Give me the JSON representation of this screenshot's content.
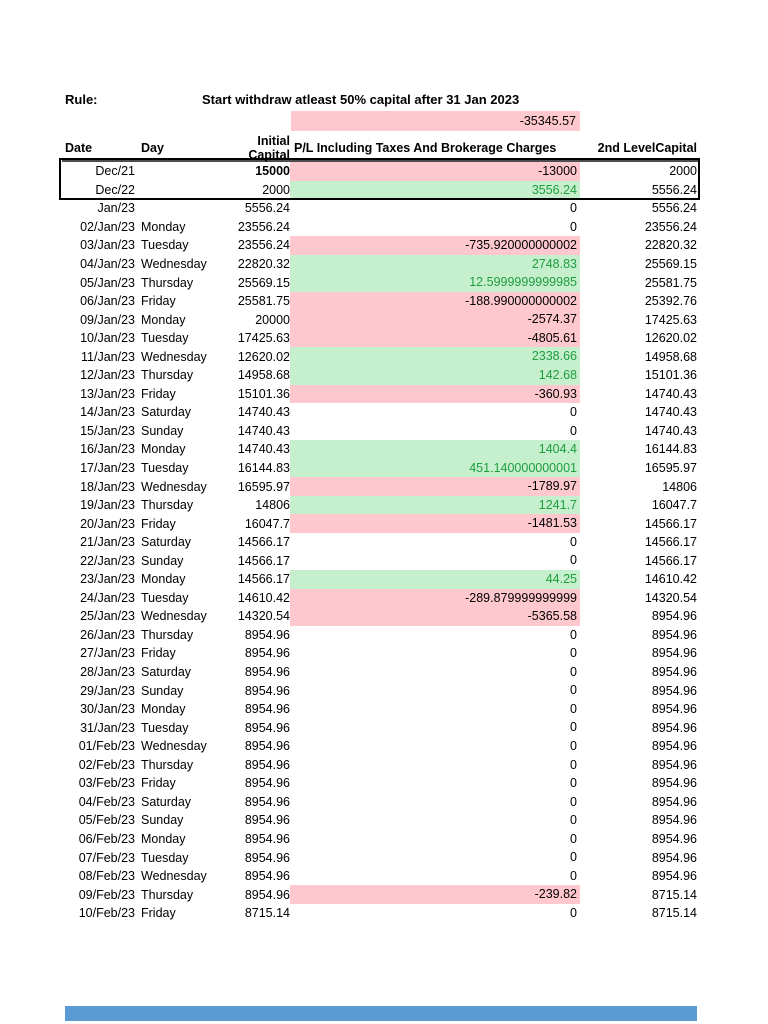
{
  "page": {
    "rule_label": "Rule:",
    "rule_text": "Start withdraw atleast 50% capital after 31 Jan 2023",
    "summary_value": "-35345.57"
  },
  "colors": {
    "negative_fill": "#ffc7ce",
    "positive_fill": "#c6efce",
    "positive_text": "#1f9e3e",
    "bottom_bar": "#5b9bd5"
  },
  "table": {
    "columns": [
      "Date",
      "Day",
      "Initial Capital",
      "P/L Including Taxes And Brokerage Charges",
      "2nd LevelCapital"
    ],
    "rows": [
      {
        "date": "Dec/21",
        "day": "",
        "initial": "15000",
        "initial_bold": true,
        "pl": "-13000",
        "state": "neg",
        "level2": "2000"
      },
      {
        "date": "Dec/22",
        "day": "",
        "initial": "2000",
        "pl": "3556.24",
        "state": "pos",
        "level2": "5556.24"
      },
      {
        "date": "Jan/23",
        "day": "",
        "initial": "5556.24",
        "pl": "0",
        "state": "zero",
        "level2": "5556.24"
      },
      {
        "date": "02/Jan/23",
        "day": "Monday",
        "initial": "23556.24",
        "pl": "0",
        "state": "zero",
        "level2": "23556.24"
      },
      {
        "date": "03/Jan/23",
        "day": "Tuesday",
        "initial": "23556.24",
        "pl": "-735.920000000002",
        "state": "neg",
        "level2": "22820.32"
      },
      {
        "date": "04/Jan/23",
        "day": "Wednesday",
        "initial": "22820.32",
        "pl": "2748.83",
        "state": "pos",
        "level2": "25569.15"
      },
      {
        "date": "05/Jan/23",
        "day": "Thursday",
        "initial": "25569.15",
        "pl": "12.5999999999985",
        "state": "pos",
        "level2": "25581.75"
      },
      {
        "date": "06/Jan/23",
        "day": "Friday",
        "initial": "25581.75",
        "pl": "-188.990000000002",
        "state": "neg",
        "level2": "25392.76"
      },
      {
        "date": "09/Jan/23",
        "day": "Monday",
        "initial": "20000",
        "pl": "-2574.37",
        "state": "neg",
        "level2": "17425.63"
      },
      {
        "date": "10/Jan/23",
        "day": "Tuesday",
        "initial": "17425.63",
        "pl": "-4805.61",
        "state": "neg",
        "level2": "12620.02"
      },
      {
        "date": "11/Jan/23",
        "day": "Wednesday",
        "initial": "12620.02",
        "pl": "2338.66",
        "state": "pos",
        "level2": "14958.68"
      },
      {
        "date": "12/Jan/23",
        "day": "Thursday",
        "initial": "14958.68",
        "pl": "142.68",
        "state": "pos",
        "level2": "15101.36"
      },
      {
        "date": "13/Jan/23",
        "day": "Friday",
        "initial": "15101.36",
        "pl": "-360.93",
        "state": "neg",
        "level2": "14740.43"
      },
      {
        "date": "14/Jan/23",
        "day": "Saturday",
        "initial": "14740.43",
        "pl": "0",
        "state": "zero",
        "level2": "14740.43"
      },
      {
        "date": "15/Jan/23",
        "day": "Sunday",
        "initial": "14740.43",
        "pl": "0",
        "state": "zero",
        "level2": "14740.43"
      },
      {
        "date": "16/Jan/23",
        "day": "Monday",
        "initial": "14740.43",
        "pl": "1404.4",
        "state": "pos",
        "level2": "16144.83"
      },
      {
        "date": "17/Jan/23",
        "day": "Tuesday",
        "initial": "16144.83",
        "pl": "451.140000000001",
        "state": "pos",
        "level2": "16595.97"
      },
      {
        "date": "18/Jan/23",
        "day": "Wednesday",
        "initial": "16595.97",
        "pl": "-1789.97",
        "state": "neg",
        "level2": "14806"
      },
      {
        "date": "19/Jan/23",
        "day": "Thursday",
        "initial": "14806",
        "pl": "1241.7",
        "state": "pos",
        "level2": "16047.7"
      },
      {
        "date": "20/Jan/23",
        "day": "Friday",
        "initial": "16047.7",
        "pl": "-1481.53",
        "state": "neg",
        "level2": "14566.17"
      },
      {
        "date": "21/Jan/23",
        "day": "Saturday",
        "initial": "14566.17",
        "pl": "0",
        "state": "zero",
        "level2": "14566.17"
      },
      {
        "date": "22/Jan/23",
        "day": "Sunday",
        "initial": "14566.17",
        "pl": "0",
        "state": "zero",
        "level2": "14566.17"
      },
      {
        "date": "23/Jan/23",
        "day": "Monday",
        "initial": "14566.17",
        "pl": "44.25",
        "state": "pos",
        "level2": "14610.42"
      },
      {
        "date": "24/Jan/23",
        "day": "Tuesday",
        "initial": "14610.42",
        "pl": "-289.879999999999",
        "state": "neg",
        "level2": "14320.54"
      },
      {
        "date": "25/Jan/23",
        "day": "Wednesday",
        "initial": "14320.54",
        "pl": "-5365.58",
        "state": "neg",
        "level2": "8954.96"
      },
      {
        "date": "26/Jan/23",
        "day": "Thursday",
        "initial": "8954.96",
        "pl": "0",
        "state": "zero",
        "level2": "8954.96"
      },
      {
        "date": "27/Jan/23",
        "day": "Friday",
        "initial": "8954.96",
        "pl": "0",
        "state": "zero",
        "level2": "8954.96"
      },
      {
        "date": "28/Jan/23",
        "day": "Saturday",
        "initial": "8954.96",
        "pl": "0",
        "state": "zero",
        "level2": "8954.96"
      },
      {
        "date": "29/Jan/23",
        "day": "Sunday",
        "initial": "8954.96",
        "pl": "0",
        "state": "zero",
        "level2": "8954.96"
      },
      {
        "date": "30/Jan/23",
        "day": "Monday",
        "initial": "8954.96",
        "pl": "0",
        "state": "zero",
        "level2": "8954.96"
      },
      {
        "date": "31/Jan/23",
        "day": "Tuesday",
        "initial": "8954.96",
        "pl": "0",
        "state": "zero",
        "level2": "8954.96"
      },
      {
        "date": "01/Feb/23",
        "day": "Wednesday",
        "initial": "8954.96",
        "pl": "0",
        "state": "zero",
        "level2": "8954.96"
      },
      {
        "date": "02/Feb/23",
        "day": "Thursday",
        "initial": "8954.96",
        "pl": "0",
        "state": "zero",
        "level2": "8954.96"
      },
      {
        "date": "03/Feb/23",
        "day": "Friday",
        "initial": "8954.96",
        "pl": "0",
        "state": "zero",
        "level2": "8954.96"
      },
      {
        "date": "04/Feb/23",
        "day": "Saturday",
        "initial": "8954.96",
        "pl": "0",
        "state": "zero",
        "level2": "8954.96"
      },
      {
        "date": "05/Feb/23",
        "day": "Sunday",
        "initial": "8954.96",
        "pl": "0",
        "state": "zero",
        "level2": "8954.96"
      },
      {
        "date": "06/Feb/23",
        "day": "Monday",
        "initial": "8954.96",
        "pl": "0",
        "state": "zero",
        "level2": "8954.96"
      },
      {
        "date": "07/Feb/23",
        "day": "Tuesday",
        "initial": "8954.96",
        "pl": "0",
        "state": "zero",
        "level2": "8954.96"
      },
      {
        "date": "08/Feb/23",
        "day": "Wednesday",
        "initial": "8954.96",
        "pl": "0",
        "state": "zero",
        "level2": "8954.96"
      },
      {
        "date": "09/Feb/23",
        "day": "Thursday",
        "initial": "8954.96",
        "pl": "-239.82",
        "state": "neg",
        "level2": "8715.14"
      },
      {
        "date": "10/Feb/23",
        "day": "Friday",
        "initial": "8715.14",
        "pl": "0",
        "state": "zero",
        "level2": "8715.14"
      }
    ]
  }
}
